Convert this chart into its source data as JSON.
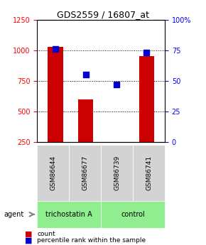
{
  "title": "GDS2559 / 16807_at",
  "samples": [
    "GSM86644",
    "GSM86677",
    "GSM86739",
    "GSM86741"
  ],
  "counts": [
    1030,
    600,
    250,
    950
  ],
  "percentiles": [
    76,
    55,
    47,
    73
  ],
  "groups": [
    "trichostatin A",
    "trichostatin A",
    "control",
    "control"
  ],
  "group_labels": [
    "trichostatin A",
    "control"
  ],
  "group_colors": [
    "#90ee90",
    "#90ee90"
  ],
  "bar_color": "#cc0000",
  "dot_color": "#0000cc",
  "ylim_left": [
    250,
    1250
  ],
  "ylim_right": [
    0,
    100
  ],
  "yticks_left": [
    250,
    500,
    750,
    1000,
    1250
  ],
  "yticks_right": [
    0,
    25,
    50,
    75,
    100
  ],
  "ytick_labels_right": [
    "0",
    "25",
    "50",
    "75",
    "100%"
  ],
  "background_color": "#ffffff",
  "sample_box_color": "#d3d3d3",
  "group_box_green": "#90ee90"
}
